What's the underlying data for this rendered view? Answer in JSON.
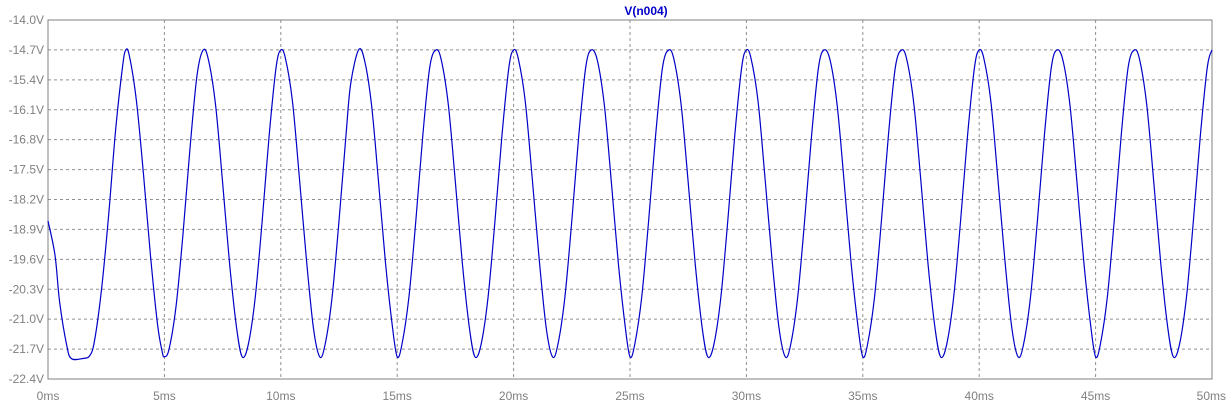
{
  "chart_data": {
    "type": "line",
    "title": "V(n004)",
    "xlabel": "",
    "ylabel": "",
    "xlim": [
      0,
      50
    ],
    "ylim": [
      -22.4,
      -14.0
    ],
    "x_unit": "ms",
    "y_unit": "V",
    "x_ticks": [
      "0ms",
      "5ms",
      "10ms",
      "15ms",
      "20ms",
      "25ms",
      "30ms",
      "35ms",
      "40ms",
      "45ms",
      "50ms"
    ],
    "y_ticks": [
      "-14.0V",
      "-14.7V",
      "-15.4V",
      "-16.1V",
      "-16.8V",
      "-17.5V",
      "-18.2V",
      "-18.9V",
      "-19.6V",
      "-20.3V",
      "-21.0V",
      "-21.7V",
      "-22.4V"
    ],
    "grid": true,
    "grid_style": "dashed",
    "series": [
      {
        "name": "V(n004)",
        "color": "#0000c8",
        "x": [
          0,
          0.3,
          0.5,
          0.8,
          1.0,
          1.5,
          1.8,
          2.0,
          2.3,
          2.6,
          2.9,
          3.2,
          3.34,
          3.5,
          3.8,
          4.1,
          4.4,
          4.7,
          4.9,
          5.0,
          5.2,
          5.5,
          5.8,
          6.1,
          6.4,
          6.67,
          6.9,
          7.2,
          7.5,
          7.8,
          8.1,
          8.34,
          8.6,
          8.9,
          9.2,
          9.5,
          9.8,
          10.0,
          10.2,
          10.5,
          10.8,
          11.1,
          11.4,
          11.67,
          11.9,
          12.2,
          12.5,
          12.8,
          13.0,
          13.34,
          13.6,
          13.9,
          14.2,
          14.5,
          14.8,
          15.0,
          15.2,
          15.5,
          15.8,
          16.1,
          16.4,
          16.67,
          16.9,
          17.2,
          17.5,
          17.8,
          18.1,
          18.34,
          18.6,
          18.9,
          19.2,
          19.5,
          19.8,
          20.0,
          20.2,
          20.5,
          20.8,
          21.1,
          21.4,
          21.67,
          21.9,
          22.2,
          22.5,
          22.8,
          23.1,
          23.34,
          23.6,
          23.9,
          24.2,
          24.5,
          24.8,
          25.0,
          25.2,
          25.5,
          25.8,
          26.1,
          26.4,
          26.67,
          26.9,
          27.2,
          27.5,
          27.8,
          28.1,
          28.34,
          28.6,
          28.9,
          29.2,
          29.5,
          29.8,
          30.0,
          30.2,
          30.5,
          30.8,
          31.1,
          31.4,
          31.67,
          31.9,
          32.2,
          32.5,
          32.8,
          33.1,
          33.34,
          33.6,
          33.9,
          34.2,
          34.5,
          34.8,
          35.0,
          35.2,
          35.5,
          35.8,
          36.1,
          36.4,
          36.67,
          36.9,
          37.2,
          37.5,
          37.8,
          38.1,
          38.34,
          38.6,
          38.9,
          39.2,
          39.5,
          39.8,
          40.0,
          40.2,
          40.5,
          40.8,
          41.1,
          41.4,
          41.67,
          41.9,
          42.2,
          42.5,
          42.8,
          43.1,
          43.34,
          43.6,
          43.9,
          44.2,
          44.5,
          44.8,
          45.0,
          45.2,
          45.5,
          45.8,
          46.1,
          46.4,
          46.67,
          46.9,
          47.2,
          47.5,
          47.8,
          48.1,
          48.34,
          48.6,
          48.9,
          49.2,
          49.5,
          49.8,
          50.0
        ],
        "y": [
          -18.7,
          -19.5,
          -20.6,
          -21.6,
          -21.92,
          -21.92,
          -21.85,
          -21.5,
          -20.3,
          -18.6,
          -16.6,
          -15.1,
          -14.7,
          -14.85,
          -15.9,
          -17.6,
          -19.5,
          -21.1,
          -21.75,
          -21.88,
          -21.7,
          -20.7,
          -19.0,
          -17.0,
          -15.3,
          -14.7,
          -14.95,
          -16.0,
          -17.8,
          -19.7,
          -21.2,
          -21.88,
          -21.6,
          -20.5,
          -18.7,
          -16.7,
          -15.1,
          -14.7,
          -14.9,
          -15.9,
          -17.7,
          -19.6,
          -21.2,
          -21.88,
          -21.6,
          -20.5,
          -18.7,
          -16.7,
          -15.5,
          -14.7,
          -14.95,
          -16.0,
          -17.8,
          -19.7,
          -21.2,
          -21.88,
          -21.6,
          -20.5,
          -18.7,
          -16.7,
          -15.1,
          -14.7,
          -14.95,
          -16.0,
          -17.8,
          -19.7,
          -21.2,
          -21.88,
          -21.6,
          -20.5,
          -18.7,
          -16.7,
          -15.1,
          -14.7,
          -14.9,
          -15.9,
          -17.7,
          -19.6,
          -21.2,
          -21.88,
          -21.6,
          -20.5,
          -18.7,
          -16.7,
          -15.1,
          -14.7,
          -14.95,
          -16.0,
          -17.8,
          -19.7,
          -21.2,
          -21.88,
          -21.6,
          -20.5,
          -18.7,
          -16.7,
          -15.1,
          -14.7,
          -14.95,
          -16.0,
          -17.8,
          -19.7,
          -21.2,
          -21.88,
          -21.6,
          -20.5,
          -18.7,
          -16.7,
          -15.1,
          -14.7,
          -14.9,
          -15.9,
          -17.7,
          -19.6,
          -21.2,
          -21.88,
          -21.6,
          -20.5,
          -18.7,
          -16.7,
          -15.1,
          -14.7,
          -14.95,
          -16.0,
          -17.8,
          -19.7,
          -21.2,
          -21.88,
          -21.6,
          -20.5,
          -18.7,
          -16.7,
          -15.1,
          -14.7,
          -14.95,
          -16.0,
          -17.8,
          -19.7,
          -21.2,
          -21.88,
          -21.6,
          -20.5,
          -18.7,
          -16.7,
          -15.1,
          -14.7,
          -14.9,
          -15.9,
          -17.7,
          -19.6,
          -21.2,
          -21.88,
          -21.6,
          -20.5,
          -18.7,
          -16.7,
          -15.1,
          -14.7,
          -14.95,
          -16.0,
          -17.8,
          -19.7,
          -21.2,
          -21.88,
          -21.6,
          -20.5,
          -18.7,
          -16.7,
          -15.1,
          -14.7,
          -14.95,
          -16.0,
          -17.8,
          -19.7,
          -21.2,
          -21.88,
          -21.6,
          -20.5,
          -18.7,
          -16.7,
          -15.1,
          -14.7
        ]
      }
    ]
  },
  "colors": {
    "background": "#ffffff",
    "frame": "#808080",
    "grid": "#909090",
    "tick_label": "#808080",
    "trace": "#0000c8",
    "title": "#0000c8"
  }
}
